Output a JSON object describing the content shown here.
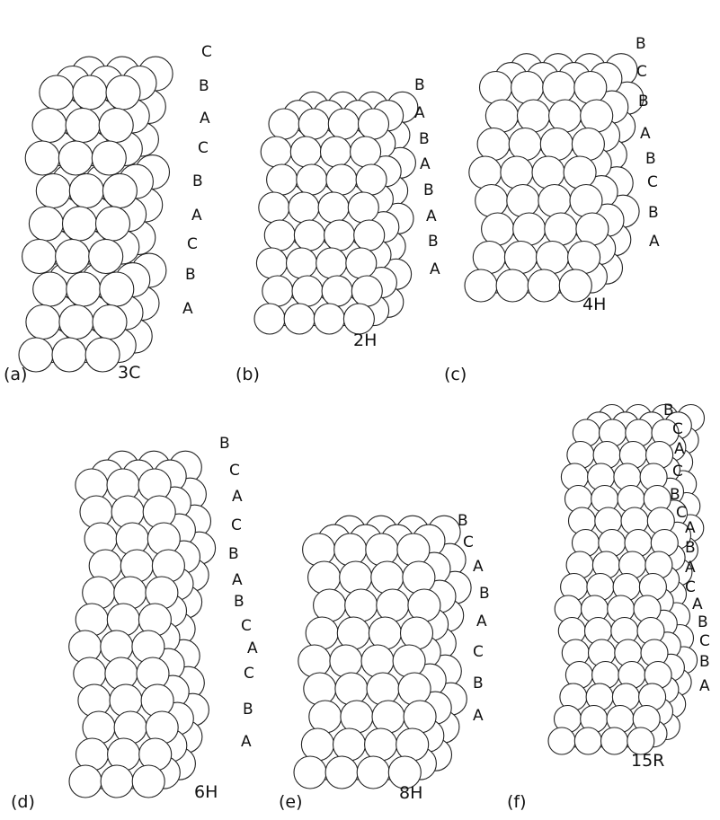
{
  "panels": [
    {
      "id": "a",
      "tag": "(a)",
      "polytype": "3C",
      "stacking": [
        "C",
        "B",
        "A",
        "C",
        "B",
        "A",
        "C",
        "B",
        "A"
      ]
    },
    {
      "id": "b",
      "tag": "(b)",
      "polytype": "2H",
      "stacking": [
        "B",
        "A",
        "B",
        "A",
        "B",
        "A",
        "B",
        "A"
      ]
    },
    {
      "id": "c",
      "tag": "(c)",
      "polytype": "4H",
      "stacking": [
        "B",
        "C",
        "B",
        "A",
        "B",
        "C",
        "B",
        "A"
      ]
    },
    {
      "id": "d",
      "tag": "(d)",
      "polytype": "6H",
      "stacking": [
        "B",
        "C",
        "A",
        "C",
        "B",
        "A",
        "B",
        "C",
        "A",
        "C",
        "B",
        "A"
      ]
    },
    {
      "id": "e",
      "tag": "(e)",
      "polytype": "8H",
      "stacking": [
        "B",
        "C",
        "A",
        "B",
        "A",
        "C",
        "B",
        "A"
      ]
    },
    {
      "id": "f",
      "tag": "(f)",
      "polytype": "15R",
      "stacking": [
        "B",
        "C",
        "A",
        "C",
        "B",
        "C",
        "A",
        "B",
        "A",
        "C",
        "A",
        "B",
        "C",
        "B",
        "A"
      ]
    }
  ]
}
